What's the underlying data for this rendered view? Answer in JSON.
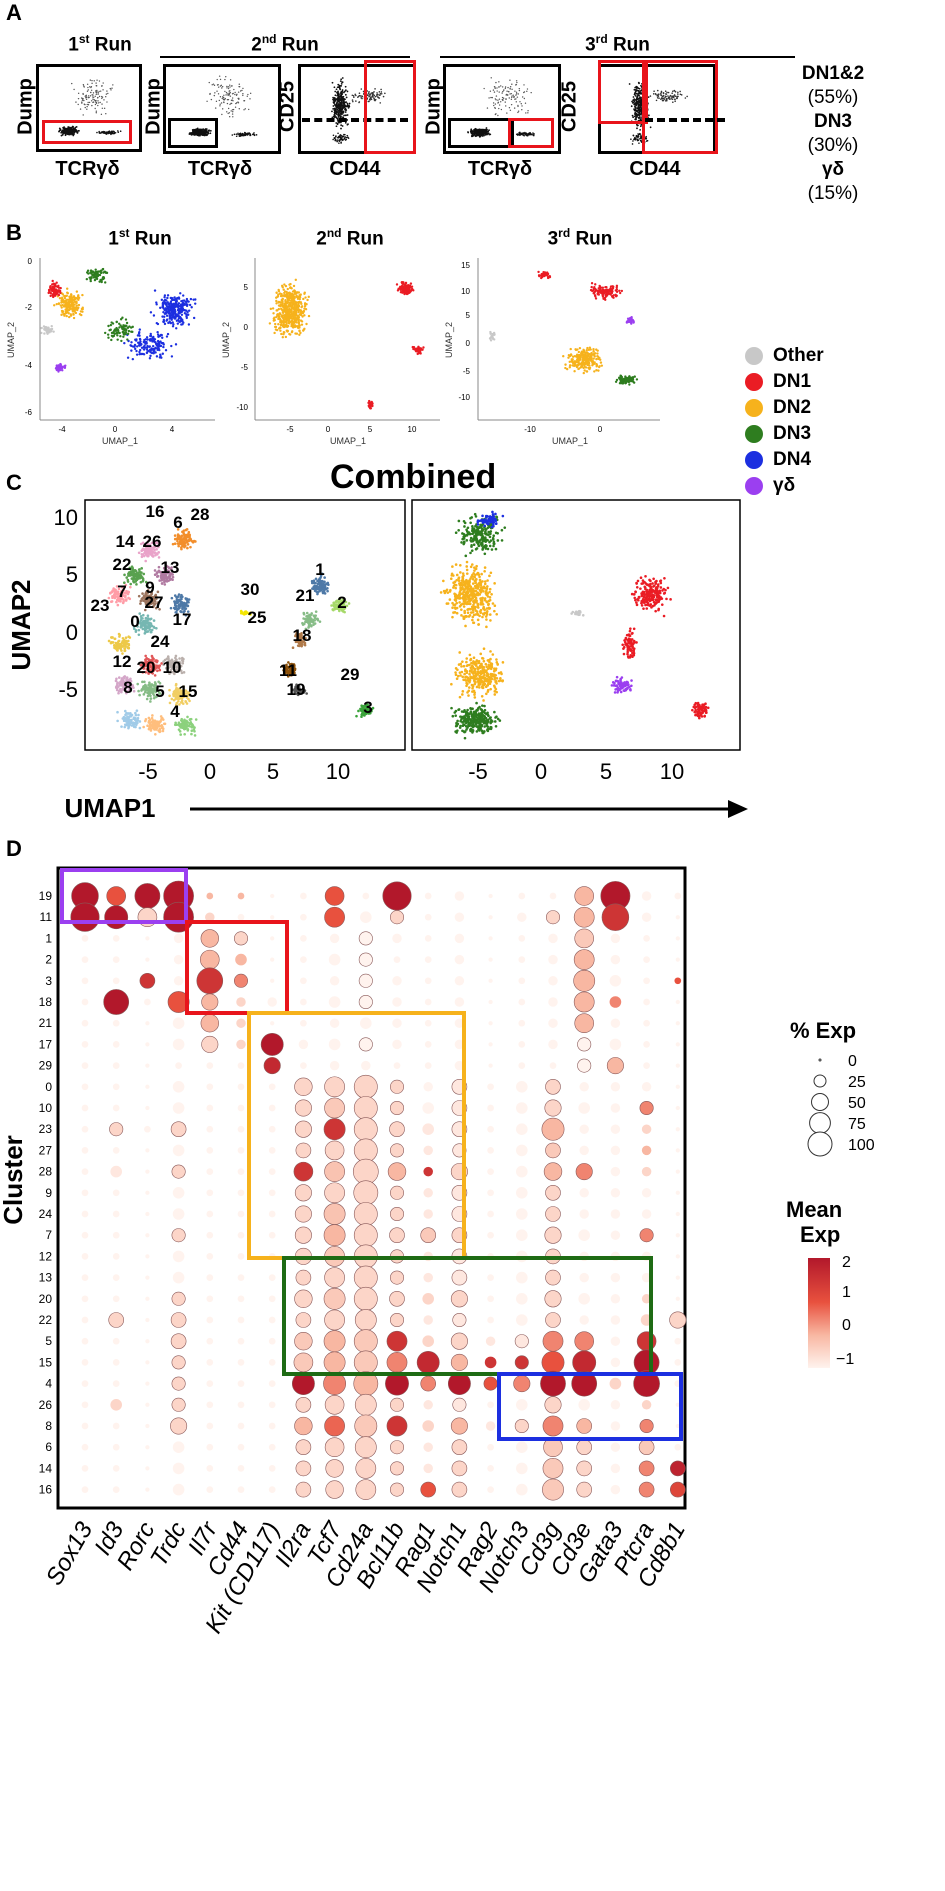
{
  "panel_labels": {
    "a": "A",
    "b": "B",
    "c": "C",
    "d": "D"
  },
  "panel_a": {
    "run1": {
      "title": "1",
      "sup": "st",
      "rest": " Run"
    },
    "run2": {
      "title": "2",
      "sup": "nd",
      "rest": " Run"
    },
    "run3": {
      "title": "3",
      "sup": "rd",
      "rest": " Run"
    },
    "dump_label": "Dump",
    "tcr_label": "TCRγδ",
    "cd25_label": "CD25",
    "cd44_label": "CD44",
    "gates": [
      {
        "name": "DN1&2",
        "pct": "(55%)"
      },
      {
        "name": "DN3",
        "pct": "(30%)"
      },
      {
        "name": "γδ",
        "pct": "(15%)"
      }
    ]
  },
  "panel_b": {
    "run1": {
      "title": "1",
      "sup": "st",
      "rest": " Run"
    },
    "run2": {
      "title": "2",
      "sup": "nd",
      "rest": " Run"
    },
    "run3": {
      "title": "3",
      "sup": "rd",
      "rest": " Run"
    },
    "xlab": "UMAP_1",
    "ylab": "UMAP_2",
    "legend": [
      {
        "label": "Other",
        "color": "#c8c8c8"
      },
      {
        "label": "DN1",
        "color": "#ea1c24"
      },
      {
        "label": "DN2",
        "color": "#f6b21c"
      },
      {
        "label": "DN3",
        "color": "#2e7d1f"
      },
      {
        "label": "DN4",
        "color": "#1c2fe0"
      },
      {
        "label": "γδ",
        "color": "#9b3ff0"
      }
    ]
  },
  "panel_c": {
    "title": "Combined",
    "ylab": "UMAP2",
    "xlab": "UMAP1",
    "xticks": [
      "-5",
      "0",
      "5",
      "10"
    ],
    "yticks": [
      "10",
      "5",
      "0",
      "-5"
    ],
    "cluster_labels": [
      "16",
      "6",
      "28",
      "14",
      "26",
      "22",
      "13",
      "9",
      "7",
      "27",
      "23",
      "0",
      "17",
      "24",
      "12",
      "20",
      "10",
      "8",
      "5",
      "15",
      "4",
      "30",
      "25",
      "1",
      "21",
      "2",
      "18",
      "11",
      "19",
      "29",
      "3"
    ]
  },
  "colors": {
    "red": "#e8141b",
    "purple": "#9b3ff0",
    "yellow": "#f6b21c",
    "green": "#1e6b14",
    "blue": "#1c2fe0"
  },
  "chart_data": {
    "type": "dotplot",
    "title": "",
    "xlabel": "",
    "ylabel": "Cluster",
    "genes": [
      "Sox13",
      "Id3",
      "Rorc",
      "Trdc",
      "Il7r",
      "Cd44",
      "Kit (CD117)",
      "Il2ra",
      "Tcf7",
      "Cd24a",
      "Bcl11b",
      "Rag1",
      "Notch1",
      "Rag2",
      "Notch3",
      "Cd3g",
      "Cd3e",
      "Gata3",
      "Ptcra",
      "Cd8b1"
    ],
    "clusters": [
      "19",
      "11",
      "1",
      "2",
      "3",
      "18",
      "21",
      "17",
      "29",
      "0",
      "10",
      "23",
      "27",
      "28",
      "9",
      "24",
      "7",
      "12",
      "13",
      "20",
      "22",
      "5",
      "15",
      "4",
      "26",
      "8",
      "6",
      "14",
      "16"
    ],
    "pct_exp_legend": {
      "title": "% Exp",
      "levels": [
        "0",
        "25",
        "50",
        "75",
        "100"
      ]
    },
    "mean_exp_legend": {
      "title": "Mean\nExp",
      "ticks": [
        "2",
        "1",
        "0",
        "−1"
      ],
      "range": [
        -1,
        2
      ]
    },
    "pct": [
      [
        80,
        40,
        70,
        100,
        5,
        5,
        2,
        5,
        40,
        5,
        90,
        5,
        10,
        2,
        5,
        5,
        40,
        95,
        10,
        5
      ],
      [
        90,
        60,
        40,
        100,
        10,
        5,
        2,
        5,
        45,
        15,
        20,
        5,
        10,
        2,
        10,
        20,
        45,
        80,
        10,
        2
      ],
      [
        5,
        5,
        2,
        10,
        35,
        20,
        2,
        5,
        10,
        20,
        10,
        5,
        10,
        2,
        5,
        10,
        40,
        10,
        5,
        2
      ],
      [
        5,
        5,
        2,
        10,
        40,
        15,
        2,
        5,
        15,
        20,
        5,
        5,
        10,
        2,
        5,
        10,
        45,
        10,
        5,
        2
      ],
      [
        5,
        5,
        25,
        10,
        75,
        20,
        2,
        5,
        10,
        20,
        10,
        5,
        10,
        2,
        5,
        10,
        50,
        15,
        5,
        5
      ],
      [
        5,
        70,
        5,
        50,
        30,
        10,
        10,
        5,
        15,
        20,
        10,
        5,
        10,
        2,
        5,
        10,
        45,
        15,
        5,
        2
      ],
      [
        5,
        5,
        2,
        15,
        35,
        10,
        2,
        5,
        10,
        15,
        10,
        5,
        10,
        2,
        5,
        10,
        40,
        10,
        5,
        2
      ],
      [
        5,
        5,
        2,
        15,
        30,
        10,
        55,
        10,
        15,
        20,
        10,
        5,
        10,
        2,
        5,
        10,
        20,
        15,
        5,
        2
      ],
      [
        5,
        5,
        2,
        5,
        5,
        5,
        30,
        5,
        10,
        10,
        5,
        5,
        10,
        2,
        5,
        5,
        20,
        30,
        5,
        2
      ],
      [
        5,
        5,
        2,
        15,
        5,
        5,
        5,
        35,
        45,
        60,
        20,
        10,
        25,
        5,
        15,
        25,
        10,
        10,
        10,
        2
      ],
      [
        5,
        5,
        2,
        15,
        5,
        5,
        5,
        30,
        45,
        60,
        20,
        15,
        25,
        5,
        15,
        30,
        15,
        10,
        20,
        2
      ],
      [
        5,
        20,
        5,
        25,
        5,
        5,
        5,
        30,
        50,
        60,
        25,
        15,
        25,
        5,
        15,
        55,
        10,
        10,
        10,
        2
      ],
      [
        5,
        5,
        2,
        15,
        5,
        5,
        5,
        25,
        40,
        60,
        20,
        10,
        20,
        5,
        15,
        25,
        10,
        10,
        10,
        2
      ],
      [
        5,
        15,
        2,
        20,
        5,
        5,
        5,
        40,
        45,
        70,
        35,
        10,
        30,
        5,
        15,
        35,
        30,
        10,
        10,
        2
      ],
      [
        5,
        5,
        2,
        15,
        5,
        5,
        5,
        30,
        45,
        65,
        20,
        10,
        25,
        5,
        15,
        25,
        10,
        10,
        10,
        2
      ],
      [
        5,
        5,
        2,
        15,
        5,
        5,
        5,
        30,
        50,
        60,
        20,
        10,
        25,
        5,
        15,
        25,
        10,
        10,
        10,
        2
      ],
      [
        5,
        5,
        2,
        20,
        5,
        5,
        5,
        30,
        50,
        60,
        25,
        25,
        25,
        5,
        15,
        30,
        15,
        10,
        20,
        2
      ],
      [
        5,
        5,
        2,
        15,
        5,
        5,
        5,
        30,
        45,
        60,
        20,
        10,
        25,
        5,
        15,
        25,
        10,
        10,
        10,
        2
      ],
      [
        5,
        5,
        2,
        15,
        5,
        5,
        5,
        25,
        45,
        60,
        20,
        10,
        25,
        5,
        15,
        25,
        10,
        10,
        10,
        2
      ],
      [
        5,
        5,
        2,
        20,
        5,
        5,
        5,
        35,
        50,
        60,
        25,
        15,
        30,
        5,
        15,
        30,
        15,
        10,
        10,
        2
      ],
      [
        5,
        25,
        2,
        25,
        5,
        5,
        5,
        25,
        45,
        50,
        20,
        10,
        20,
        5,
        15,
        25,
        10,
        10,
        15,
        30
      ],
      [
        5,
        5,
        2,
        25,
        5,
        5,
        5,
        35,
        50,
        60,
        45,
        15,
        30,
        10,
        20,
        45,
        40,
        10,
        40,
        5
      ],
      [
        5,
        5,
        2,
        20,
        5,
        5,
        5,
        40,
        50,
        60,
        45,
        55,
        30,
        15,
        20,
        55,
        60,
        10,
        70,
        5
      ],
      [
        5,
        5,
        2,
        20,
        5,
        5,
        5,
        55,
        55,
        65,
        60,
        25,
        55,
        20,
        30,
        70,
        70,
        15,
        75,
        5
      ],
      [
        5,
        15,
        2,
        20,
        5,
        5,
        5,
        25,
        40,
        50,
        20,
        10,
        20,
        5,
        15,
        30,
        15,
        10,
        10,
        2
      ],
      [
        5,
        5,
        2,
        30,
        5,
        5,
        5,
        35,
        45,
        55,
        45,
        15,
        30,
        10,
        20,
        45,
        25,
        10,
        20,
        2
      ],
      [
        5,
        5,
        2,
        15,
        5,
        5,
        5,
        25,
        40,
        50,
        20,
        10,
        25,
        5,
        15,
        40,
        25,
        10,
        25,
        5
      ],
      [
        5,
        5,
        2,
        15,
        5,
        5,
        5,
        25,
        35,
        45,
        20,
        10,
        25,
        5,
        15,
        45,
        25,
        10,
        25,
        25
      ],
      [
        5,
        5,
        2,
        15,
        5,
        5,
        5,
        25,
        35,
        45,
        20,
        25,
        25,
        5,
        15,
        50,
        25,
        10,
        25,
        25
      ]
    ],
    "mean": [
      [
        2,
        1,
        2,
        2,
        0,
        0,
        -1,
        -1,
        1,
        -1,
        2,
        -1,
        -1,
        -1,
        -1,
        -1,
        0,
        2,
        -1,
        -1
      ],
      [
        2,
        2,
        -0.5,
        2,
        -0.5,
        -1,
        -1,
        -1,
        1,
        -1,
        -0.5,
        -1,
        -1,
        -1,
        -1,
        -0.5,
        0,
        1.5,
        -1,
        -1
      ],
      [
        -1,
        -1,
        -1,
        -1,
        0,
        -0.5,
        -1,
        -1,
        -1,
        -1,
        -1,
        -1,
        -1,
        -1,
        -1,
        -1,
        -0.3,
        -1,
        -1,
        -1
      ],
      [
        -1,
        -1,
        -1,
        -1,
        0,
        0,
        -1,
        -1,
        -1,
        -1,
        -1,
        -1,
        -1,
        -1,
        -1,
        -1,
        0,
        -1,
        -1,
        -1
      ],
      [
        -1,
        -1,
        1.5,
        -1,
        1.5,
        0.5,
        -1,
        -1,
        -1,
        -1,
        -1,
        -1,
        -1,
        -1,
        -1,
        -1,
        0,
        -1,
        -1,
        1
      ],
      [
        -1,
        2,
        -1,
        1,
        0,
        -0.5,
        -1,
        -1,
        -1,
        -1,
        -1,
        -1,
        -1,
        -1,
        -1,
        -1,
        0,
        0.5,
        -1,
        -1
      ],
      [
        -1,
        -1,
        -1,
        -1,
        0,
        -0.5,
        -1,
        -1,
        -1,
        -1,
        -1,
        -1,
        -1,
        -1,
        -1,
        -1,
        0,
        -1,
        -1,
        -1
      ],
      [
        -1,
        -1,
        -1,
        -1,
        -0.5,
        -0.5,
        2,
        -1,
        -1,
        -1,
        -1,
        -1,
        -1,
        -1,
        -1,
        -1,
        -1,
        -1,
        -1,
        -1
      ],
      [
        -1,
        -1,
        -1,
        -1,
        -1,
        -1,
        1.7,
        -1,
        -1,
        -1,
        -1,
        -1,
        -1,
        -1,
        -1,
        -1,
        -1,
        0,
        -1,
        -1
      ],
      [
        -1,
        -1,
        -1,
        -1,
        -1,
        -1,
        -1,
        -0.5,
        -0.5,
        -0.5,
        -0.5,
        -1,
        -0.8,
        -1,
        -1,
        -0.5,
        -1,
        -1,
        -1,
        -1
      ],
      [
        -1,
        -1,
        -1,
        -1,
        -1,
        -1,
        -1,
        -0.5,
        -0.3,
        -0.5,
        -0.5,
        -1,
        -0.8,
        -1,
        -1,
        -0.5,
        -1,
        -1,
        0.5,
        -1
      ],
      [
        -1,
        -0.5,
        -1,
        -0.5,
        -1,
        -1,
        -1,
        -0.5,
        1.5,
        -0.5,
        -0.5,
        -0.8,
        -0.8,
        -1,
        -1,
        0,
        -1,
        -1,
        -0.5,
        -1
      ],
      [
        -1,
        -1,
        -1,
        -1,
        -1,
        -1,
        -1,
        -0.5,
        -0.5,
        -0.5,
        -0.5,
        -0.8,
        -0.8,
        -1,
        -1,
        -0.3,
        -1,
        -1,
        0,
        -1
      ],
      [
        -1,
        -0.8,
        -1,
        -0.5,
        -1,
        -1,
        -1,
        1.5,
        -0.2,
        -0.5,
        0,
        1.5,
        -0.5,
        -1,
        -1,
        0,
        0.5,
        -1,
        -0.5,
        -1
      ],
      [
        -1,
        -1,
        -1,
        -1,
        -1,
        -1,
        -1,
        -0.5,
        -0.5,
        -0.5,
        -0.5,
        -0.8,
        -0.8,
        -1,
        -1,
        -0.5,
        -1,
        -1,
        -1,
        -1
      ],
      [
        -1,
        -1,
        -1,
        -1,
        -1,
        -1,
        -1,
        -0.5,
        -0.2,
        -0.5,
        -0.5,
        -0.8,
        -0.8,
        -1,
        -1,
        -0.5,
        -1,
        -1,
        -1,
        -1
      ],
      [
        -1,
        -1,
        -1,
        -0.5,
        -1,
        -1,
        -1,
        -0.5,
        0,
        -0.5,
        -0.5,
        -0.3,
        -0.5,
        -1,
        -1,
        -0.5,
        -1,
        -1,
        0.5,
        -1
      ],
      [
        -1,
        -1,
        -1,
        -1,
        -1,
        -1,
        -1,
        -0.5,
        -0.3,
        -0.5,
        -0.5,
        -0.8,
        -0.8,
        -1,
        -1,
        -0.5,
        -1,
        -1,
        -1,
        -1
      ],
      [
        -1,
        -1,
        -1,
        -1,
        -1,
        -1,
        -1,
        -0.5,
        -0.5,
        -0.5,
        -0.5,
        -0.8,
        -0.8,
        -1,
        -1,
        -0.5,
        -1,
        -1,
        -1,
        -1
      ],
      [
        -1,
        -1,
        -1,
        -0.5,
        -1,
        -1,
        -1,
        -0.5,
        -0.3,
        -0.5,
        -0.5,
        -0.5,
        -0.5,
        -1,
        -1,
        -0.5,
        -1,
        -1,
        -0.5,
        -1
      ],
      [
        -1,
        -0.5,
        -1,
        -0.5,
        -1,
        -1,
        -1,
        -0.5,
        -0.5,
        -0.5,
        -0.5,
        -0.8,
        -0.8,
        -1,
        -1,
        -0.5,
        -1,
        -1,
        -0.5,
        -0.5
      ],
      [
        -1,
        -1,
        -1,
        -0.5,
        -1,
        -1,
        -1,
        -0.3,
        0,
        -0.3,
        1.5,
        -0.5,
        -0.5,
        -0.8,
        -0.8,
        0.5,
        0.5,
        -1,
        1.5,
        -1
      ],
      [
        -1,
        -1,
        -1,
        -0.5,
        -1,
        -1,
        -1,
        -0.3,
        0,
        -0.3,
        0.5,
        1.7,
        0,
        1.5,
        1.5,
        1,
        1.7,
        -1,
        2,
        -1
      ],
      [
        -1,
        -1,
        -1,
        -0.5,
        -1,
        -1,
        -1,
        2,
        0.5,
        0,
        2,
        0.5,
        2,
        1,
        0.5,
        2,
        2,
        -0.5,
        2,
        -1
      ],
      [
        -1,
        -0.5,
        -1,
        -0.5,
        -1,
        -1,
        -1,
        -0.5,
        -0.5,
        -0.5,
        -0.5,
        -0.8,
        -0.8,
        -1,
        -1,
        -0.5,
        -1,
        -1,
        -0.5,
        -1
      ],
      [
        -1,
        -1,
        -1,
        -0.5,
        -1,
        -1,
        -1,
        0,
        0.8,
        -0.3,
        1.5,
        -0.5,
        0,
        -0.8,
        -0.5,
        0.5,
        0,
        -1,
        0.5,
        -1
      ],
      [
        -1,
        -1,
        -1,
        -1,
        -1,
        -1,
        -1,
        -0.5,
        -0.5,
        -0.5,
        -0.5,
        -0.8,
        -0.5,
        -1,
        -1,
        -0.3,
        -0.5,
        -1,
        -0.3,
        -1
      ],
      [
        -1,
        -1,
        -1,
        -1,
        -1,
        -1,
        -1,
        -0.5,
        -0.5,
        -0.5,
        -0.5,
        -0.8,
        -0.5,
        -1,
        -1,
        -0.3,
        -0.5,
        -1,
        0.5,
        1.8
      ],
      [
        -1,
        -1,
        -1,
        -1,
        -1,
        -1,
        -1,
        -0.5,
        -0.5,
        -0.5,
        -0.5,
        1,
        -0.5,
        -1,
        -1,
        -0.3,
        -0.5,
        -1,
        0.5,
        1.2
      ]
    ]
  }
}
